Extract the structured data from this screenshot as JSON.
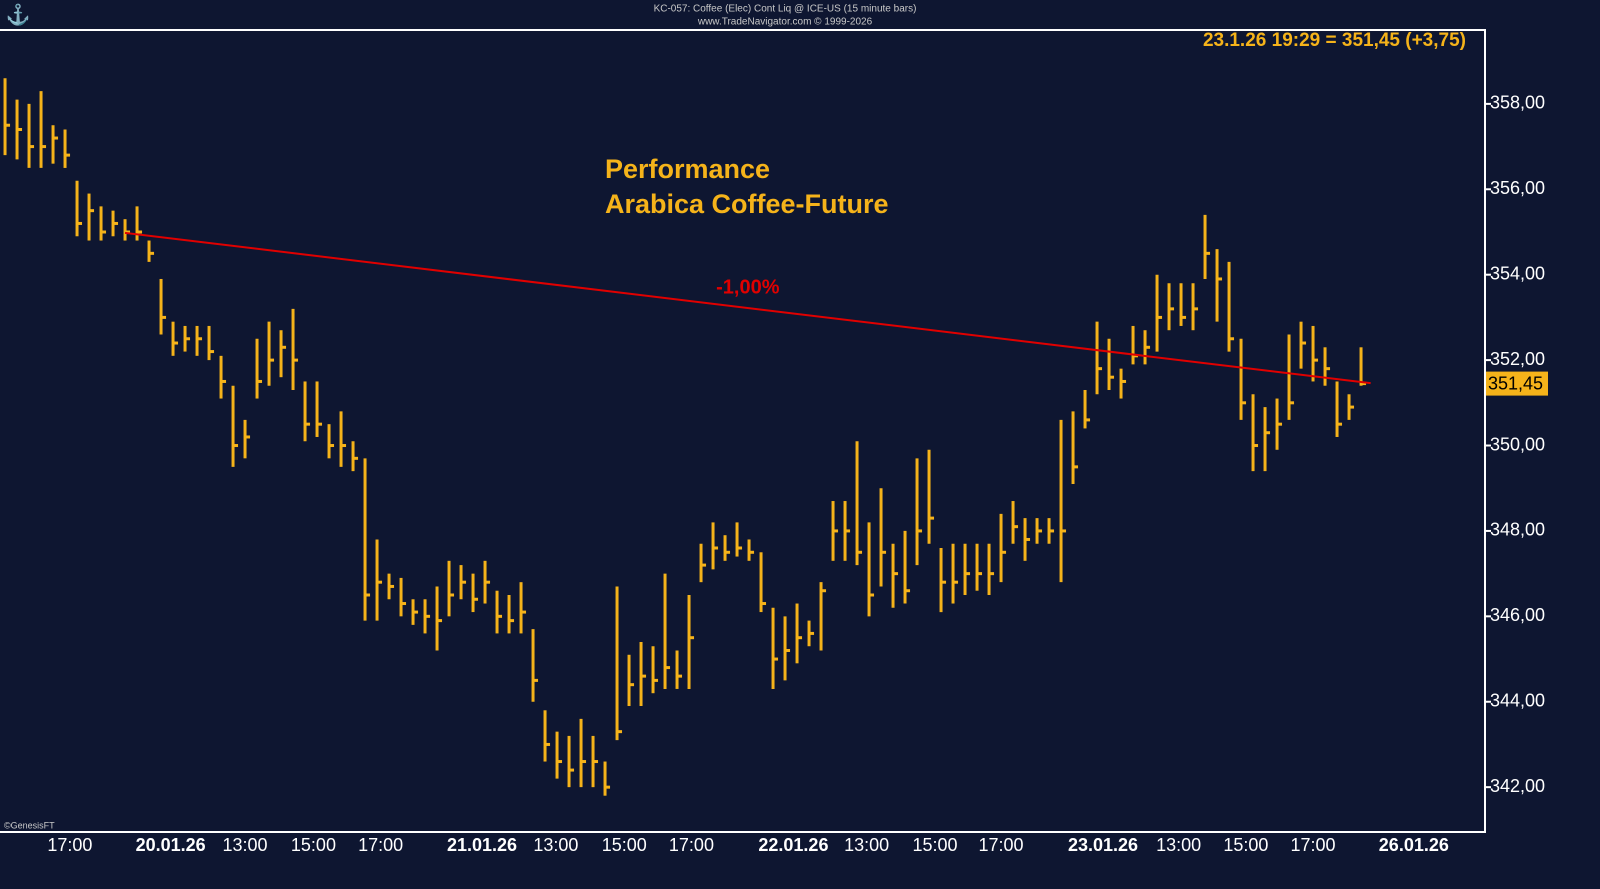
{
  "chart_data": {
    "type": "ohlc",
    "header": "KC-057:  Coffee (Elec) Cont Liq @ ICE-US  (15 minute bars)",
    "copyright": "www.TradeNavigator.com © 1999-2026",
    "quote": "23.1.26 19:29 = 351,45 (+3,75)",
    "title": [
      "Performance",
      "Arabica Coffee-Future"
    ],
    "footer": "©GenesisFT",
    "color": "#f5b31a",
    "high": [
      358.6,
      358.1,
      358.0,
      358.3,
      357.5,
      357.4,
      356.2,
      355.9,
      355.6,
      355.5,
      355.3,
      355.6,
      354.8,
      353.9,
      352.9,
      352.8,
      352.8,
      352.8,
      352.1,
      351.4,
      350.6,
      352.5,
      352.9,
      352.7,
      353.2,
      351.5,
      351.5,
      350.5,
      350.8,
      350.1,
      349.7,
      347.8,
      347.0,
      346.9,
      346.4,
      346.4,
      346.7,
      347.3,
      347.2,
      347.0,
      347.3,
      346.6,
      346.5,
      346.8,
      345.7,
      343.8,
      343.3,
      343.2,
      343.6,
      343.2,
      342.6,
      346.7,
      345.1,
      345.4,
      345.3,
      347.0,
      345.2,
      346.5,
      347.7,
      348.2,
      347.9,
      348.2,
      347.8,
      347.5,
      346.2,
      346.0,
      346.3,
      345.9,
      346.8,
      348.7,
      348.7,
      350.1,
      348.2,
      349.0,
      347.7,
      348.0,
      349.7,
      349.9,
      347.6,
      347.7,
      347.7,
      347.7,
      347.7,
      348.4,
      348.7,
      348.3,
      348.3,
      348.3,
      350.6,
      350.8,
      351.3,
      352.9,
      352.5,
      351.8,
      352.8,
      352.7,
      354.0,
      353.8,
      353.8,
      353.8,
      355.4,
      354.6,
      354.3,
      352.5,
      351.2,
      350.9,
      351.1,
      352.6,
      352.9,
      352.8,
      352.3,
      351.5,
      351.2,
      352.3
    ],
    "low": [
      356.8,
      356.7,
      356.5,
      356.5,
      356.6,
      356.5,
      354.9,
      354.8,
      354.8,
      354.9,
      354.8,
      354.8,
      354.3,
      352.6,
      352.1,
      352.2,
      352.1,
      352.0,
      351.1,
      349.5,
      349.7,
      351.1,
      351.4,
      351.6,
      351.3,
      350.1,
      350.2,
      349.7,
      349.5,
      349.4,
      345.9,
      345.9,
      346.4,
      346.0,
      345.8,
      345.6,
      345.2,
      346.0,
      346.4,
      346.1,
      346.3,
      345.6,
      345.6,
      345.6,
      344.0,
      342.6,
      342.2,
      342.0,
      342.0,
      342.0,
      341.8,
      343.1,
      343.9,
      343.9,
      344.2,
      344.3,
      344.3,
      344.3,
      346.8,
      347.1,
      347.3,
      347.4,
      347.3,
      346.1,
      344.3,
      344.5,
      344.9,
      345.3,
      345.2,
      347.3,
      347.3,
      347.2,
      346.0,
      346.7,
      346.2,
      346.3,
      347.2,
      347.7,
      346.1,
      346.3,
      346.5,
      346.6,
      346.5,
      346.8,
      347.7,
      347.3,
      347.7,
      347.7,
      346.8,
      349.1,
      350.4,
      351.2,
      351.3,
      351.1,
      351.9,
      351.9,
      352.2,
      352.7,
      352.8,
      352.7,
      353.9,
      352.9,
      352.2,
      350.6,
      349.4,
      349.4,
      349.9,
      350.6,
      351.8,
      351.5,
      351.4,
      350.2,
      350.6,
      351.4
    ],
    "close": [
      357.5,
      357.4,
      357.0,
      357.0,
      357.2,
      356.8,
      355.2,
      355.5,
      355.0,
      355.2,
      355.0,
      355.0,
      354.5,
      353.0,
      352.4,
      352.5,
      352.5,
      352.2,
      351.5,
      350.0,
      350.2,
      351.5,
      352.0,
      352.3,
      352.0,
      350.5,
      350.5,
      350.0,
      350.0,
      349.7,
      346.5,
      346.8,
      346.7,
      346.3,
      346.1,
      346.0,
      345.9,
      346.5,
      346.8,
      346.4,
      346.8,
      346.0,
      345.9,
      346.1,
      344.5,
      343.0,
      342.6,
      342.4,
      342.6,
      342.6,
      342.0,
      343.3,
      344.4,
      344.6,
      344.5,
      344.8,
      344.6,
      345.5,
      347.2,
      347.6,
      347.5,
      347.6,
      347.5,
      346.3,
      345.0,
      345.2,
      345.5,
      345.6,
      346.6,
      348.0,
      348.0,
      347.5,
      346.5,
      347.5,
      347.0,
      346.6,
      348.0,
      348.3,
      346.8,
      346.8,
      347.0,
      347.0,
      347.0,
      347.5,
      348.1,
      347.8,
      348.0,
      348.0,
      348.0,
      349.5,
      350.6,
      351.8,
      351.6,
      351.5,
      352.1,
      352.3,
      353.0,
      353.2,
      353.0,
      353.2,
      354.5,
      353.9,
      352.5,
      351.0,
      350.0,
      350.3,
      350.5,
      351.0,
      352.4,
      352.0,
      351.8,
      350.5,
      350.9,
      351.45
    ],
    "trendline": {
      "x": [
        10,
        113.8
      ],
      "values": [
        354.98,
        351.46
      ],
      "label": "-1,00%",
      "color": "#e00000"
    },
    "last_price": {
      "value": 351.45,
      "label": "351,45"
    },
    "xlim": [
      -0.42,
      123.33
    ],
    "ylim": [
      340.95,
      359.73
    ],
    "xticks": [
      {
        "value": 5.4,
        "label": "17:00"
      },
      {
        "value": 13.8,
        "label": "20.01.26"
      },
      {
        "value": 20,
        "label": "13:00"
      },
      {
        "value": 25.7,
        "label": "15:00"
      },
      {
        "value": 31.3,
        "label": "17:00"
      },
      {
        "value": 39.75,
        "label": "21.01.26"
      },
      {
        "value": 45.9,
        "label": "13:00"
      },
      {
        "value": 51.6,
        "label": "15:00"
      },
      {
        "value": 57.2,
        "label": "17:00"
      },
      {
        "value": 65.7,
        "label": "22.01.26"
      },
      {
        "value": 71.8,
        "label": "13:00"
      },
      {
        "value": 77.5,
        "label": "15:00"
      },
      {
        "value": 83,
        "label": "17:00"
      },
      {
        "value": 91.5,
        "label": "23.01.26"
      },
      {
        "value": 97.8,
        "label": "13:00"
      },
      {
        "value": 103.4,
        "label": "15:00"
      },
      {
        "value": 109,
        "label": "17:00"
      },
      {
        "value": 117.4,
        "label": "26.01.26"
      }
    ],
    "yticks": [
      {
        "value": 342,
        "label": "342,00"
      },
      {
        "value": 344,
        "label": "344,00"
      },
      {
        "value": 346,
        "label": "346,00"
      },
      {
        "value": 348,
        "label": "348,00"
      },
      {
        "value": 350,
        "label": "350,00"
      },
      {
        "value": 352,
        "label": "352,00"
      },
      {
        "value": 354,
        "label": "354,00"
      },
      {
        "value": 356,
        "label": "356,00"
      },
      {
        "value": 358,
        "label": "358,00"
      }
    ]
  }
}
